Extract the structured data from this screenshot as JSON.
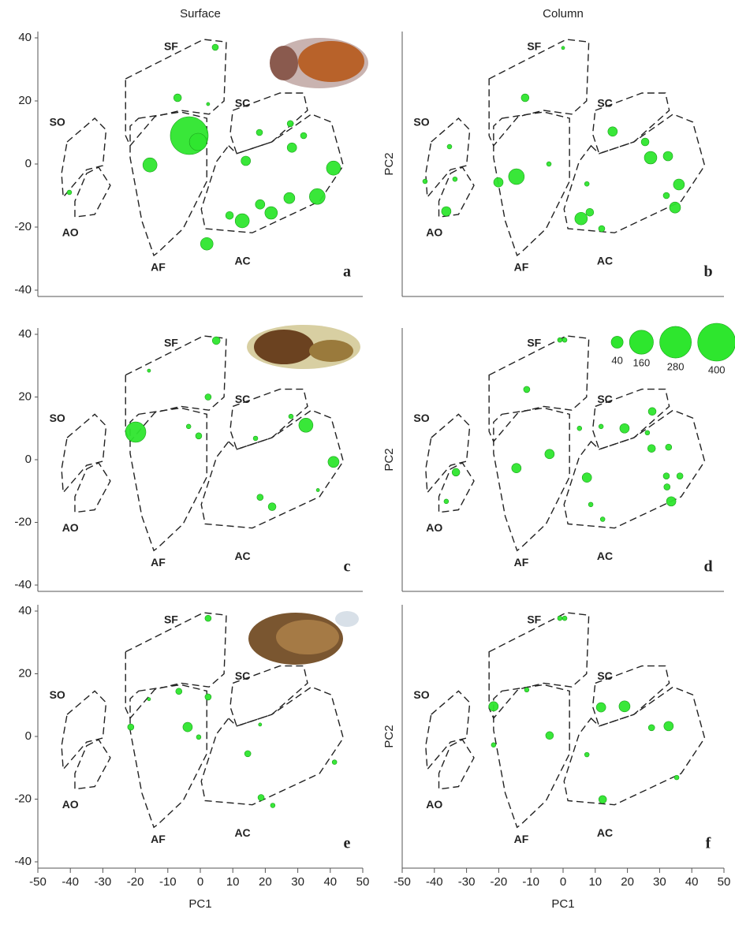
{
  "chart_data": [
    {
      "type": "scatter",
      "title": "Surface",
      "panel_label": "a",
      "xlim": [
        -50,
        50
      ],
      "ylim": [
        -40,
        40
      ],
      "yticks": [
        -40,
        -20,
        0,
        20,
        40
      ],
      "regions": [
        "SF",
        "SO",
        "AO",
        "AF",
        "SC",
        "AC"
      ],
      "color": "#2ee62e",
      "x": [
        4.6,
        -7,
        -3.4,
        -0.7,
        -15.5,
        2.4,
        -40.3,
        18.2,
        27.7,
        28.2,
        31.8,
        14,
        41,
        27.4,
        36,
        9,
        12.9,
        18.4,
        21.8,
        2
      ],
      "y": [
        37,
        21,
        9,
        7,
        -0.3,
        19,
        -9,
        10,
        12.8,
        5.2,
        9,
        1,
        -1.3,
        -10.8,
        -10.3,
        -16.3,
        -18,
        -12.8,
        -15.5,
        -25.3
      ],
      "sizes": [
        11,
        17,
        400,
        84,
        56,
        3,
        6,
        11,
        11,
        25,
        11,
        25,
        56,
        34,
        69,
        17,
        56,
        25,
        44,
        44
      ]
    },
    {
      "type": "scatter",
      "title": "Column",
      "panel_label": "b",
      "xlim": [
        -50,
        50
      ],
      "ylim": [
        -40,
        40
      ],
      "ylabel": "PC2",
      "regions": [
        "SF",
        "SO",
        "AO",
        "AF",
        "SC",
        "AC"
      ],
      "color": "#2ee62e",
      "x": [
        0,
        -11.8,
        -35.3,
        -33.6,
        -42.9,
        -36.3,
        -20.1,
        -14.5,
        -4.4,
        15.4,
        25.5,
        27.2,
        32.6,
        36,
        32.1,
        34.8,
        7.4,
        8.3,
        5.6,
        12
      ],
      "y": [
        36.8,
        21,
        5.5,
        -4.8,
        -5.5,
        -15,
        -5.8,
        -4,
        0,
        10.3,
        7,
        2,
        2.5,
        -6.5,
        -10,
        -13.8,
        -6.3,
        -15.3,
        -17.3,
        -20.5
      ],
      "sizes": [
        3,
        17,
        6,
        6,
        6,
        25,
        25,
        69,
        6,
        25,
        17,
        44,
        25,
        34,
        11,
        34,
        6,
        17,
        44,
        11
      ]
    },
    {
      "type": "scatter",
      "panel_label": "c",
      "xlim": [
        -50,
        50
      ],
      "ylim": [
        -40,
        40
      ],
      "yticks": [
        -40,
        -20,
        0,
        20,
        40
      ],
      "regions": [
        "SF",
        "SO",
        "AO",
        "AF",
        "SC",
        "AC"
      ],
      "color": "#2ee62e",
      "x": [
        4.9,
        2.4,
        -15.8,
        -19.9,
        -3.6,
        -0.5,
        32.5,
        27.9,
        17,
        41,
        18.4,
        22.1,
        36.2
      ],
      "y": [
        38,
        20,
        28.4,
        8.8,
        10.6,
        7.6,
        11,
        13.8,
        6.8,
        -0.7,
        -12,
        -15,
        -9.7
      ],
      "sizes": [
        17,
        11,
        3,
        117,
        6,
        11,
        56,
        6,
        6,
        34,
        11,
        17,
        3
      ]
    },
    {
      "type": "scatter",
      "panel_label": "d",
      "xlim": [
        -50,
        50
      ],
      "ylim": [
        -40,
        40
      ],
      "ylabel": "PC2",
      "regions": [
        "SF",
        "SO",
        "AO",
        "AF",
        "SC",
        "AC"
      ],
      "color": "#2ee62e",
      "size_legend": [
        40,
        160,
        280,
        400
      ],
      "x": [
        0.5,
        -1,
        -11.3,
        -33.3,
        -36.3,
        -14.5,
        -4.2,
        7.4,
        5.1,
        11.8,
        19.1,
        27.7,
        26.2,
        27.5,
        32.8,
        32.1,
        36.3,
        32.3,
        33.6,
        8.6,
        12.3
      ],
      "y": [
        38.2,
        38.2,
        22.4,
        -4,
        -13.3,
        -2.7,
        1.8,
        -5.7,
        10,
        10.6,
        10,
        15.4,
        8.6,
        3.6,
        4,
        -5.2,
        -5.2,
        -8.7,
        -13.3,
        -14.3,
        -19
      ],
      "sizes": [
        6,
        6,
        11,
        17,
        6,
        25,
        25,
        25,
        6,
        6,
        25,
        17,
        6,
        17,
        11,
        11,
        11,
        11,
        25,
        6,
        6
      ]
    },
    {
      "type": "scatter",
      "panel_label": "e",
      "xlim": [
        -50,
        50
      ],
      "ylim": [
        -40,
        40
      ],
      "yticks": [
        -40,
        -20,
        0,
        20,
        40
      ],
      "xticks": [
        -50,
        -40,
        -30,
        -20,
        -10,
        0,
        10,
        20,
        30,
        40,
        50
      ],
      "xlabel": "PC1",
      "regions": [
        "SF",
        "SO",
        "AO",
        "AF",
        "SC",
        "AC"
      ],
      "color": "#2ee62e",
      "x": [
        2.4,
        -6.6,
        -15.8,
        2.4,
        -21.4,
        -3.9,
        -0.5,
        14.6,
        18.4,
        41.3,
        18.7,
        22.3
      ],
      "y": [
        37.7,
        14.4,
        11.9,
        12.6,
        3,
        3,
        -0.2,
        -5.5,
        3.8,
        -8.2,
        -19.5,
        -22
      ],
      "sizes": [
        11,
        11,
        3,
        11,
        11,
        25,
        6,
        11,
        3,
        6,
        11,
        6
      ]
    },
    {
      "type": "scatter",
      "panel_label": "f",
      "xlim": [
        -50,
        50
      ],
      "ylim": [
        -40,
        40
      ],
      "ylabel": "PC2",
      "xticks": [
        -50,
        -40,
        -30,
        -20,
        -10,
        0,
        10,
        20,
        30,
        40,
        50
      ],
      "xlabel": "PC1",
      "regions": [
        "SF",
        "SO",
        "AO",
        "AF",
        "SC",
        "AC"
      ],
      "color": "#2ee62e",
      "x": [
        0.5,
        -1,
        -11.3,
        -21.6,
        -21.6,
        -4.2,
        11.8,
        19.1,
        27.5,
        32.8,
        7.4,
        35.3,
        12.3
      ],
      "y": [
        37.7,
        37.7,
        14.9,
        9.6,
        -2.7,
        0.3,
        9.3,
        9.6,
        2.8,
        3.3,
        -5.8,
        -13.1,
        -20.1
      ],
      "sizes": [
        6,
        6,
        6,
        25,
        6,
        17,
        25,
        34,
        11,
        25,
        6,
        6,
        17
      ]
    }
  ]
}
